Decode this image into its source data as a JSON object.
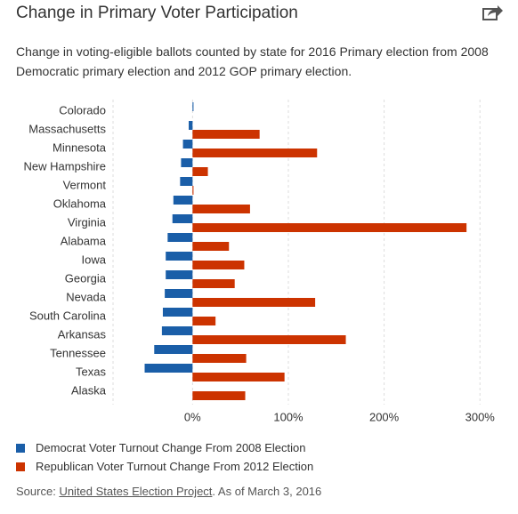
{
  "chart_data": {
    "type": "hbar",
    "title": "Change in Primary Voter Participation",
    "subtitle": "Change in voting-eligible ballots counted by state for 2016 Primary election from 2008 Democratic primary election and 2012 GOP primary election.",
    "categories": [
      "Colorado",
      "Massachusetts",
      "Minnesota",
      "New Hampshire",
      "Vermont",
      "Oklahoma",
      "Virginia",
      "Alabama",
      "Iowa",
      "Georgia",
      "Nevada",
      "South Carolina",
      "Arkansas",
      "Tennessee",
      "Texas",
      "Alaska"
    ],
    "series": [
      {
        "name": "Democrat Voter Turnout Change From 2008 Election",
        "color": "#1a5ea8",
        "values": [
          1,
          -4,
          -10,
          -12,
          -13,
          -20,
          -21,
          -26,
          -28,
          -28,
          -29,
          -31,
          -32,
          -40,
          -50,
          null
        ]
      },
      {
        "name": "Republican Voter Turnout Change From 2012 Election",
        "color": "#cc3300",
        "values": [
          null,
          70,
          130,
          16,
          1,
          60,
          286,
          38,
          54,
          44,
          128,
          24,
          160,
          56,
          96,
          55
        ]
      }
    ],
    "xlim": [
      -83,
      310
    ],
    "xticks": [
      {
        "value": 0,
        "label": "0%"
      },
      {
        "value": 100,
        "label": "100%"
      },
      {
        "value": 200,
        "label": "200%"
      },
      {
        "value": 300,
        "label": "300%"
      }
    ],
    "grid": true
  },
  "source": {
    "prefix": "Source:",
    "link": "United States Election Project",
    "suffix": ". As of March 3, 2016"
  }
}
